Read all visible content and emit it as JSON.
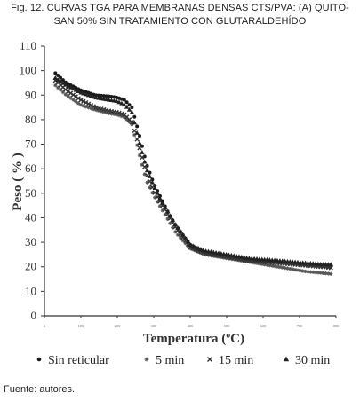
{
  "figure": {
    "caption_line1": "Fig. 12. CURVAS TGA PARA MEMBRANAS DENSAS CTS/PVA: (A) QUITO-",
    "caption_line2": "SAN 50% SIN TRATAMIENTO CON GLUTARALDEHÍDO",
    "source": "Fuente: autores."
  },
  "chart_data": {
    "type": "scatter",
    "title": "",
    "xlabel": "Temperatura (ºC)",
    "ylabel": "Peso ( % )",
    "x_tick_labels": [
      "0",
      "100",
      "200",
      "300",
      "400",
      "500",
      "600",
      "700",
      "800"
    ],
    "xlim": [
      0,
      800
    ],
    "ylim": [
      0,
      110
    ],
    "y_ticks": [
      "0",
      "10",
      "20",
      "30",
      "40",
      "50",
      "60",
      "70",
      "80",
      "90",
      "100",
      "110"
    ],
    "grid": false,
    "legend_position": "bottom",
    "series": [
      {
        "name": "Sin reticular",
        "marker": "circle",
        "color": "#1a1a1a",
        "x": [
          30,
          60,
          100,
          140,
          180,
          200,
          220,
          240,
          260,
          280,
          300,
          320,
          340,
          360,
          400,
          440,
          480,
          520,
          560,
          600,
          640,
          680,
          720,
          760,
          790
        ],
        "y": [
          99,
          95,
          92,
          90,
          89.5,
          89,
          88,
          85,
          74,
          62,
          54,
          48,
          42,
          37,
          29,
          26,
          25,
          24,
          23,
          22.5,
          22,
          21.5,
          21,
          20.5,
          20
        ]
      },
      {
        "name": "5 min",
        "marker": "star",
        "color": "#555555",
        "x": [
          30,
          60,
          100,
          140,
          180,
          200,
          220,
          240,
          260,
          280,
          300,
          320,
          340,
          360,
          400,
          440,
          480,
          520,
          560,
          600,
          640,
          680,
          720,
          760,
          790
        ],
        "y": [
          94,
          90,
          86,
          84,
          82.5,
          82,
          81,
          78,
          66,
          55,
          49,
          44,
          39,
          34,
          27.5,
          25,
          24,
          23,
          22,
          21,
          20,
          19,
          18,
          17.5,
          17
        ]
      },
      {
        "name": "15 min",
        "marker": "x",
        "color": "#333333",
        "x": [
          30,
          60,
          100,
          140,
          180,
          200,
          220,
          240,
          260,
          280,
          300,
          320,
          340,
          360,
          400,
          440,
          480,
          520,
          560,
          600,
          640,
          680,
          720,
          760,
          790
        ],
        "y": [
          96,
          92,
          88,
          85,
          83.5,
          83,
          82,
          79,
          69,
          58,
          51,
          46,
          41,
          36,
          28,
          25.5,
          24.5,
          23.5,
          22.5,
          22,
          21.5,
          21,
          20.5,
          20,
          19.5
        ]
      },
      {
        "name": "30 min",
        "marker": "triangle",
        "color": "#222222",
        "x": [
          30,
          60,
          100,
          140,
          180,
          200,
          220,
          240,
          260,
          280,
          300,
          320,
          340,
          360,
          400,
          440,
          480,
          520,
          560,
          600,
          640,
          680,
          720,
          760,
          790
        ],
        "y": [
          97,
          94,
          91,
          89,
          88,
          87.5,
          86,
          83,
          71,
          60,
          53,
          47,
          42,
          37,
          29,
          26.5,
          25.5,
          24.5,
          23.5,
          23,
          22.5,
          22,
          21.5,
          21,
          21
        ]
      }
    ]
  }
}
